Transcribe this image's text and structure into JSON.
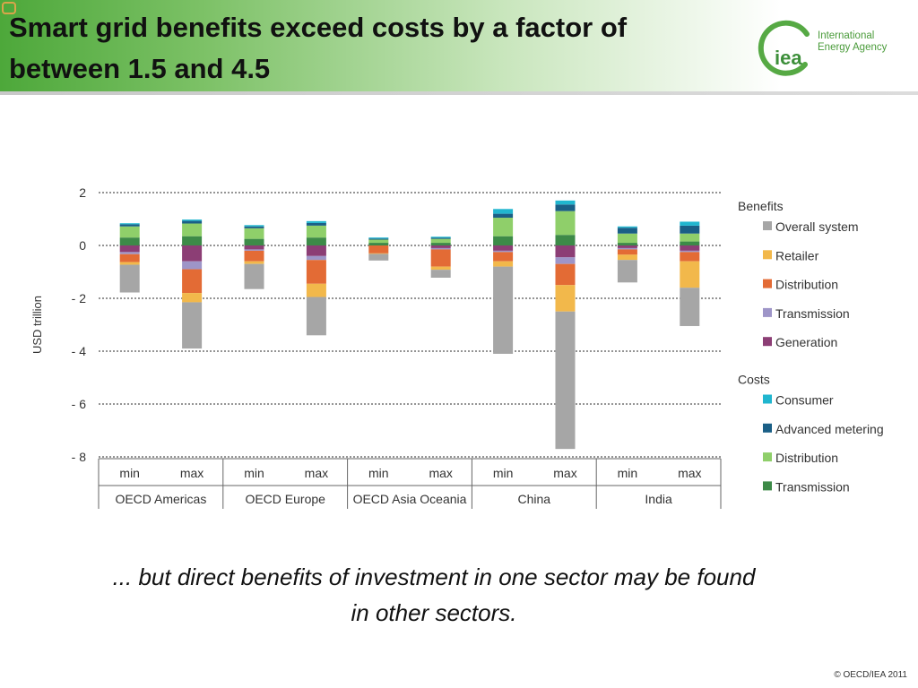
{
  "slide": {
    "title_line1": "Smart grid benefits exceed costs by a factor of",
    "title_line2": "between 1.5 and 4.5",
    "caption_line1": "... but direct benefits of investment in one sector may be found",
    "caption_line2": "in other sectors.",
    "copyright": "© OECD/IEA 2011"
  },
  "logo": {
    "mark": "iea",
    "name_line1": "International",
    "name_line2": "Energy Agency"
  },
  "chart_data": {
    "type": "bar",
    "stacked": true,
    "ylabel": "USD trillion",
    "ylim": [
      -8,
      2
    ],
    "yticks": [
      2,
      0,
      -2,
      -4,
      -6,
      -8
    ],
    "ytick_labels": [
      "2",
      "0",
      "- 2",
      "- 4",
      "- 6",
      "- 8"
    ],
    "grid": "dotted horizontal",
    "categories": [
      "min",
      "max",
      "min",
      "max",
      "min",
      "max",
      "min",
      "max",
      "min",
      "max"
    ],
    "groups": [
      "OECD Americas",
      "OECD Europe",
      "OECD Asia Oceania",
      "China",
      "India"
    ],
    "legend_groups": [
      {
        "title": "Benefits",
        "items": [
          "Overall system",
          "Retailer",
          "Distribution",
          "Transmission",
          "Generation"
        ]
      },
      {
        "title": "Costs",
        "items": [
          "Consumer",
          "Advanced metering",
          "Distribution",
          "Transmission"
        ]
      }
    ],
    "legend_position": "right",
    "cost_series": [
      {
        "name": "Transmission",
        "color": "#3d8a48",
        "values": [
          0.3,
          0.35,
          0.25,
          0.3,
          0.1,
          0.1,
          0.35,
          0.4,
          0.1,
          0.15
        ]
      },
      {
        "name": "Distribution",
        "color": "#8fcf6a",
        "values": [
          0.42,
          0.48,
          0.4,
          0.45,
          0.12,
          0.15,
          0.7,
          0.9,
          0.35,
          0.3
        ]
      },
      {
        "name": "Advanced metering",
        "color": "#1a5f86",
        "values": [
          0.08,
          0.1,
          0.07,
          0.1,
          0.04,
          0.04,
          0.15,
          0.25,
          0.22,
          0.3
        ]
      },
      {
        "name": "Consumer",
        "color": "#20b6cf",
        "values": [
          0.04,
          0.05,
          0.05,
          0.07,
          0.04,
          0.04,
          0.18,
          0.15,
          0.05,
          0.15
        ]
      }
    ],
    "benefit_series": [
      {
        "name": "Generation",
        "color": "#8c3e75",
        "values": [
          0.25,
          0.6,
          0.15,
          0.4,
          0.0,
          0.1,
          0.2,
          0.45,
          0.1,
          0.2
        ]
      },
      {
        "name": "Transmission",
        "color": "#9e95c8",
        "values": [
          0.08,
          0.3,
          0.05,
          0.15,
          0.0,
          0.05,
          0.05,
          0.25,
          0.05,
          0.05
        ]
      },
      {
        "name": "Distribution",
        "color": "#e36b35",
        "values": [
          0.3,
          0.9,
          0.4,
          0.9,
          0.3,
          0.65,
          0.35,
          0.8,
          0.2,
          0.35
        ]
      },
      {
        "name": "Retailer",
        "color": "#f2b84b",
        "values": [
          0.1,
          0.35,
          0.1,
          0.5,
          0.02,
          0.12,
          0.2,
          1.0,
          0.2,
          1.0
        ]
      },
      {
        "name": "Overall system",
        "color": "#a6a6a6",
        "values": [
          1.05,
          1.75,
          0.95,
          1.45,
          0.25,
          0.3,
          3.3,
          5.2,
          0.85,
          1.45
        ]
      }
    ]
  }
}
